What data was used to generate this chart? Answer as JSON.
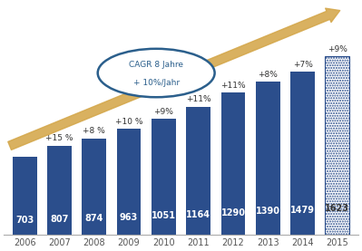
{
  "years": [
    "2006",
    "2007",
    "2008",
    "2009",
    "2010",
    "2011",
    "2012",
    "2013",
    "2014",
    "2015"
  ],
  "values": [
    703,
    807,
    874,
    963,
    1051,
    1164,
    1290,
    1390,
    1479,
    1623
  ],
  "growth": [
    null,
    "+15 %",
    "+8 %",
    "+10 %",
    "+9%",
    "+11%",
    "+11%",
    "+8%",
    "+7%",
    "+9%"
  ],
  "bar_color_solid": "#2B4E8C",
  "bg_color": "#FFFFFF",
  "arrow_color": "#D4A74A",
  "ellipse_color": "#2B5F8C",
  "text_color_white": "#FFFFFF",
  "text_color_dark": "#333333",
  "cagr_line1": "CAGR 8 Jahre",
  "cagr_line2": "+ 10%/Jahr",
  "value_fontsize": 7,
  "growth_fontsize": 6.5,
  "tick_fontsize": 7,
  "ylim": [
    0,
    2100
  ]
}
